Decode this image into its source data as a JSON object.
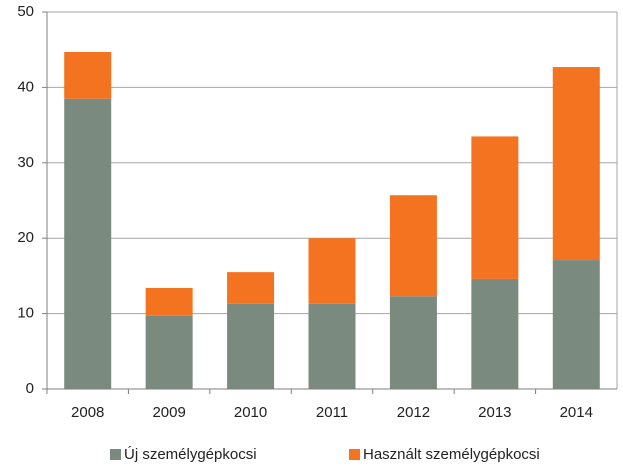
{
  "chart_data": {
    "type": "stacked_bar",
    "categories": [
      "2008",
      "2009",
      "2010",
      "2011",
      "2012",
      "2013",
      "2014"
    ],
    "series": [
      {
        "name": "Új személygépkocsi",
        "color": "#7a8a7e",
        "values": [
          38.5,
          9.7,
          11.3,
          11.3,
          12.3,
          14.6,
          17.1
        ]
      },
      {
        "name": "Használt személygépkocsi",
        "color": "#f47321",
        "values": [
          6.2,
          3.7,
          4.2,
          8.7,
          13.4,
          18.9,
          25.6
        ]
      }
    ],
    "ylim": [
      0,
      50
    ],
    "yticks": [
      0,
      10,
      20,
      30,
      40,
      50
    ],
    "grid": true,
    "legend": "bottom"
  }
}
